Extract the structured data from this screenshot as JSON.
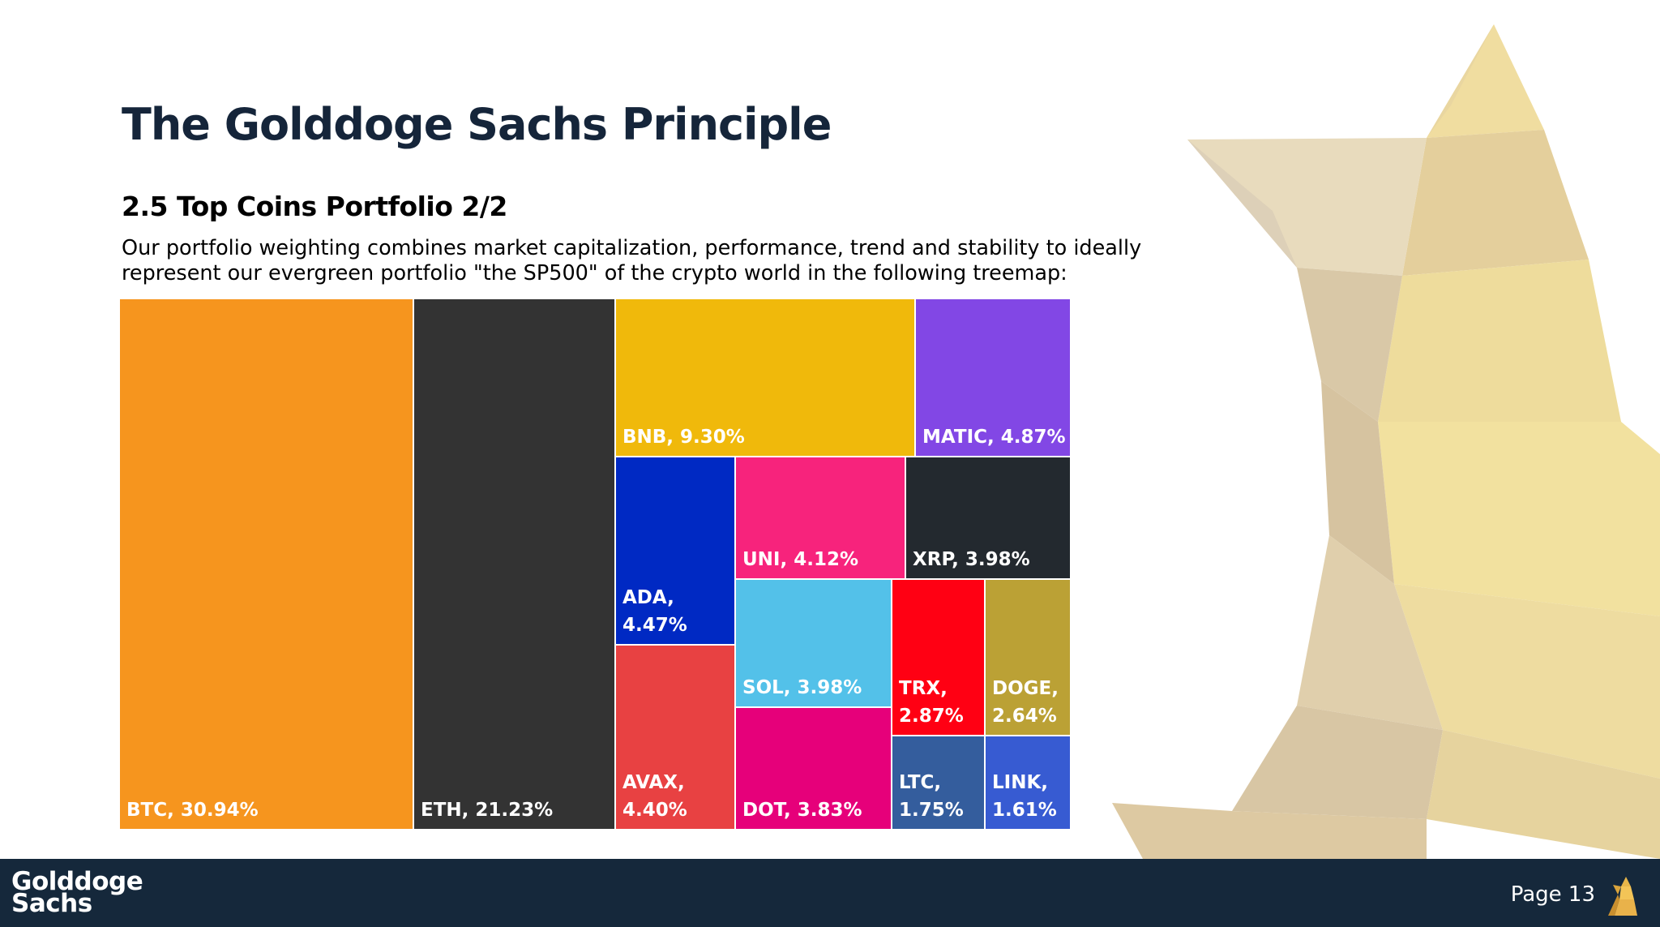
{
  "header": {
    "title": "The Golddoge Sachs Principle",
    "subtitle": "2.5 Top Coins Portfolio 2/2",
    "description": "Our portfolio weighting combines market capitalization, performance, trend and stability to ideally represent our evergreen portfolio \"the SP500\" of the crypto world in the following treemap:"
  },
  "chart_data": {
    "type": "treemap",
    "title": "",
    "value_unit": "%",
    "items": [
      {
        "name": "BTC",
        "value": 30.94,
        "label": "BTC, 30.94%",
        "color": "#f6951e"
      },
      {
        "name": "ETH",
        "value": 21.23,
        "label": "ETH, 21.23%",
        "color": "#333333"
      },
      {
        "name": "BNB",
        "value": 9.3,
        "label": "BNB, 9.30%",
        "color": "#f0b90b"
      },
      {
        "name": "MATIC",
        "value": 4.87,
        "label": "MATIC, 4.87%",
        "color": "#8247e5"
      },
      {
        "name": "ADA",
        "value": 4.47,
        "label": "ADA,\n4.47%",
        "color": "#0029c3"
      },
      {
        "name": "UNI",
        "value": 4.12,
        "label": "UNI, 4.12%",
        "color": "#f7237c"
      },
      {
        "name": "XRP",
        "value": 3.98,
        "label": "XRP, 3.98%",
        "color": "#23292f"
      },
      {
        "name": "SOL",
        "value": 3.98,
        "label": "SOL, 3.98%",
        "color": "#53c1e9"
      },
      {
        "name": "TRX",
        "value": 2.87,
        "label": "TRX,\n2.87%",
        "color": "#ff0013"
      },
      {
        "name": "DOGE",
        "value": 2.64,
        "label": "DOGE,\n2.64%",
        "color": "#bba135"
      },
      {
        "name": "AVAX",
        "value": 4.4,
        "label": "AVAX,\n4.40%",
        "color": "#e84142"
      },
      {
        "name": "DOT",
        "value": 3.83,
        "label": "DOT, 3.83%",
        "color": "#e6007a"
      },
      {
        "name": "LTC",
        "value": 1.75,
        "label": "LTC,\n1.75%",
        "color": "#345d9d"
      },
      {
        "name": "LINK",
        "value": 1.61,
        "label": "LINK,\n1.61%",
        "color": "#375bd2"
      }
    ]
  },
  "footer": {
    "brand": "Golddoge\nSachs",
    "page_label": "Page 13",
    "icon": "doge-icon",
    "background": "#15283b"
  }
}
